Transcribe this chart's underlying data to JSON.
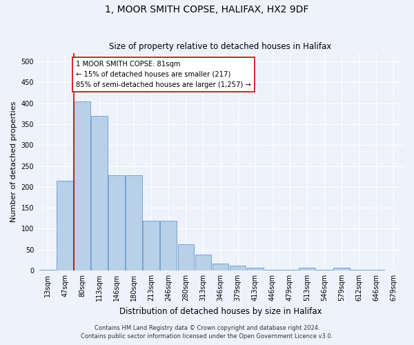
{
  "title_line1": "1, MOOR SMITH COPSE, HALIFAX, HX2 9DF",
  "title_line2": "Size of property relative to detached houses in Halifax",
  "xlabel": "Distribution of detached houses by size in Halifax",
  "ylabel": "Number of detached properties",
  "categories": [
    "13sqm",
    "47sqm",
    "80sqm",
    "113sqm",
    "146sqm",
    "180sqm",
    "213sqm",
    "246sqm",
    "280sqm",
    "313sqm",
    "346sqm",
    "379sqm",
    "413sqm",
    "446sqm",
    "479sqm",
    "513sqm",
    "546sqm",
    "579sqm",
    "612sqm",
    "646sqm",
    "679sqm"
  ],
  "values": [
    2,
    215,
    405,
    370,
    228,
    228,
    119,
    119,
    63,
    38,
    17,
    12,
    6,
    2,
    2,
    6,
    2,
    7,
    2,
    1,
    0
  ],
  "bar_color": "#b8d0e8",
  "bar_edge_color": "#6699cc",
  "vline_x_index": 2,
  "annotation_line1": "1 MOOR SMITH COPSE: 81sqm",
  "annotation_line2": "← 15% of detached houses are smaller (217)",
  "annotation_line3": "85% of semi-detached houses are larger (1,257) →",
  "annotation_box_facecolor": "#ffffff",
  "annotation_box_edgecolor": "#cc0000",
  "vline_color": "#cc0000",
  "ylim": [
    0,
    520
  ],
  "yticks": [
    0,
    50,
    100,
    150,
    200,
    250,
    300,
    350,
    400,
    450,
    500
  ],
  "footnote_line1": "Contains HM Land Registry data © Crown copyright and database right 2024.",
  "footnote_line2": "Contains public sector information licensed under the Open Government Licence v3.0.",
  "background_color": "#eef2fb",
  "grid_color": "#ffffff",
  "title1_fontsize": 10,
  "title2_fontsize": 8.5,
  "ylabel_fontsize": 8,
  "xlabel_fontsize": 8.5,
  "tick_fontsize": 7,
  "annot_fontsize": 7.2,
  "footnote_fontsize": 6
}
